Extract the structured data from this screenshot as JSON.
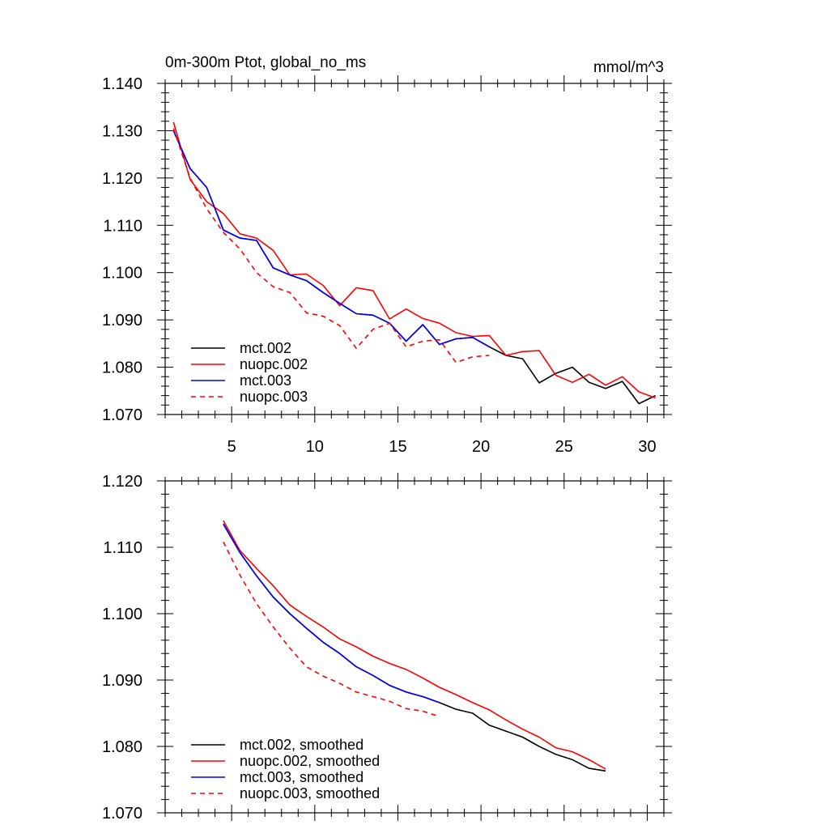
{
  "chart_data": [
    {
      "type": "line",
      "title": "0m-300m Ptot, global_no_ms",
      "units": "mmol/m^3",
      "xlim": [
        1,
        31
      ],
      "ylim": [
        1.07,
        1.14
      ],
      "xticks": [
        5,
        10,
        15,
        20,
        25,
        30
      ],
      "yticks": [
        1.07,
        1.08,
        1.09,
        1.1,
        1.11,
        1.12,
        1.13,
        1.14
      ],
      "ytick_labels": [
        "1.070",
        "1.080",
        "1.090",
        "1.100",
        "1.110",
        "1.120",
        "1.130",
        "1.140"
      ],
      "legend_position": "bottom-left",
      "series": [
        {
          "name": "mct.002",
          "color": "#000000",
          "dash": "solid",
          "x": [
            1.5,
            2.5,
            3.5,
            4.5,
            5.5,
            6.5,
            7.5,
            8.5,
            9.5,
            10.5,
            11.5,
            12.5,
            13.5,
            14.5,
            15.5,
            16.5,
            17.5,
            18.5,
            19.5,
            20.5,
            21.5,
            22.5,
            23.5,
            24.5,
            25.5,
            26.5,
            27.5,
            28.5,
            29.5,
            30.5
          ],
          "y": [
            1.13,
            1.122,
            1.118,
            1.109,
            1.1073,
            1.1068,
            1.101,
            1.0995,
            1.0983,
            1.0958,
            1.0935,
            1.0913,
            1.091,
            1.0893,
            1.0855,
            1.089,
            1.0848,
            1.086,
            1.0863,
            1.0843,
            1.0825,
            1.0818,
            1.0767,
            1.0787,
            1.08,
            1.0768,
            1.0755,
            1.077,
            1.0723,
            1.074
          ]
        },
        {
          "name": "nuopc.002",
          "color": "#ff0000",
          "dash": "solid",
          "x": [
            1.5,
            2.5,
            3.5,
            4.5,
            5.5,
            6.5,
            7.5,
            8.5,
            9.5,
            10.5,
            11.5,
            12.5,
            13.5,
            14.5,
            15.5,
            16.5,
            17.5,
            18.5,
            19.5,
            20.5,
            21.5,
            22.5,
            23.5,
            24.5,
            25.5,
            26.5,
            27.5,
            28.5,
            29.5,
            30.5
          ],
          "y": [
            1.1318,
            1.1197,
            1.115,
            1.1125,
            1.1082,
            1.1073,
            1.1047,
            1.0995,
            1.0997,
            1.0973,
            1.093,
            1.0968,
            1.0962,
            1.0902,
            1.0923,
            1.0903,
            1.0893,
            1.0873,
            1.0865,
            1.0867,
            1.0825,
            1.0833,
            1.0835,
            1.0783,
            1.0768,
            1.0785,
            1.0762,
            1.078,
            1.0748,
            1.0735
          ]
        },
        {
          "name": "mct.003",
          "color": "#0000ff",
          "dash": "solid",
          "x": [
            1.5,
            2.5,
            3.5,
            4.5,
            5.5,
            6.5,
            7.5,
            8.5,
            9.5,
            10.5,
            11.5,
            12.5,
            13.5,
            14.5,
            15.5,
            16.5,
            17.5,
            18.5,
            19.5,
            20.5
          ],
          "y": [
            1.13,
            1.122,
            1.118,
            1.109,
            1.1073,
            1.1068,
            1.101,
            1.0995,
            1.0983,
            1.0958,
            1.0935,
            1.0913,
            1.091,
            1.0893,
            1.0855,
            1.089,
            1.0848,
            1.086,
            1.0863,
            1.0843
          ]
        },
        {
          "name": "nuopc.003",
          "color": "#ff0000",
          "dash": "dashed",
          "x": [
            1.5,
            2.5,
            3.5,
            4.5,
            5.5,
            6.5,
            7.5,
            8.5,
            9.5,
            10.5,
            11.5,
            12.5,
            13.5,
            14.5,
            15.5,
            16.5,
            17.5,
            18.5,
            19.5,
            20.5
          ],
          "y": [
            1.1305,
            1.12,
            1.1135,
            1.1085,
            1.105,
            1.1,
            1.097,
            1.0958,
            1.0915,
            1.0908,
            1.0888,
            1.084,
            1.088,
            1.0893,
            1.0843,
            1.0855,
            1.0858,
            1.081,
            1.0822,
            1.0825
          ]
        }
      ]
    },
    {
      "type": "line",
      "xlim": [
        1,
        31
      ],
      "ylim": [
        1.07,
        1.12
      ],
      "xticks": [
        5,
        10,
        15,
        20,
        25,
        30
      ],
      "yticks": [
        1.07,
        1.08,
        1.09,
        1.1,
        1.11,
        1.12
      ],
      "ytick_labels": [
        "1.070",
        "1.080",
        "1.090",
        "1.100",
        "1.110",
        "1.120"
      ],
      "legend_position": "bottom-left",
      "series": [
        {
          "name": "mct.002, smoothed",
          "color": "#000000",
          "dash": "solid",
          "x": [
            4.5,
            5.5,
            6.5,
            7.5,
            8.5,
            9.5,
            10.5,
            11.5,
            12.5,
            13.5,
            14.5,
            15.5,
            16.5,
            17.5,
            18.5,
            19.5,
            20.5,
            21.5,
            22.5,
            23.5,
            24.5,
            25.5,
            26.5,
            27.5
          ],
          "y": [
            1.1135,
            1.1092,
            1.1057,
            1.1025,
            1.1,
            1.0978,
            1.0957,
            1.094,
            1.092,
            1.0907,
            1.0892,
            1.0882,
            1.0875,
            1.0866,
            1.0856,
            1.085,
            1.0832,
            1.0823,
            1.0814,
            1.08,
            1.0788,
            1.078,
            1.0767,
            1.0763
          ]
        },
        {
          "name": "nuopc.002, smoothed",
          "color": "#ff0000",
          "dash": "solid",
          "x": [
            4.5,
            5.5,
            6.5,
            7.5,
            8.5,
            9.5,
            10.5,
            11.5,
            12.5,
            13.5,
            14.5,
            15.5,
            16.5,
            17.5,
            18.5,
            19.5,
            20.5,
            21.5,
            22.5,
            23.5,
            24.5,
            25.5,
            26.5,
            27.5
          ],
          "y": [
            1.114,
            1.1095,
            1.1068,
            1.1042,
            1.1013,
            1.0996,
            1.098,
            1.0962,
            1.095,
            1.0936,
            1.0925,
            1.0916,
            1.0903,
            1.0889,
            1.0878,
            1.0866,
            1.0855,
            1.084,
            1.0826,
            1.0814,
            1.0798,
            1.0792,
            1.078,
            1.0766
          ]
        },
        {
          "name": "mct.003, smoothed",
          "color": "#0000ff",
          "dash": "solid",
          "x": [
            4.5,
            5.5,
            6.5,
            7.5,
            8.5,
            9.5,
            10.5,
            11.5,
            12.5,
            13.5,
            14.5,
            15.5,
            16.5,
            17.5
          ],
          "y": [
            1.1135,
            1.1092,
            1.1057,
            1.1025,
            1.1,
            1.0978,
            1.0957,
            1.094,
            1.092,
            1.0907,
            1.0892,
            1.0882,
            1.0875,
            1.0866
          ]
        },
        {
          "name": "nuopc.003, smoothed",
          "color": "#ff0000",
          "dash": "dashed",
          "x": [
            4.5,
            5.5,
            6.5,
            7.5,
            8.5,
            9.5,
            10.5,
            11.5,
            12.5,
            13.5,
            14.5,
            15.5,
            16.5,
            17.5
          ],
          "y": [
            1.1108,
            1.1058,
            1.1015,
            1.098,
            1.0948,
            1.092,
            1.0906,
            1.0895,
            1.0882,
            1.0875,
            1.0868,
            1.0857,
            1.0853,
            1.0845
          ]
        }
      ]
    }
  ]
}
